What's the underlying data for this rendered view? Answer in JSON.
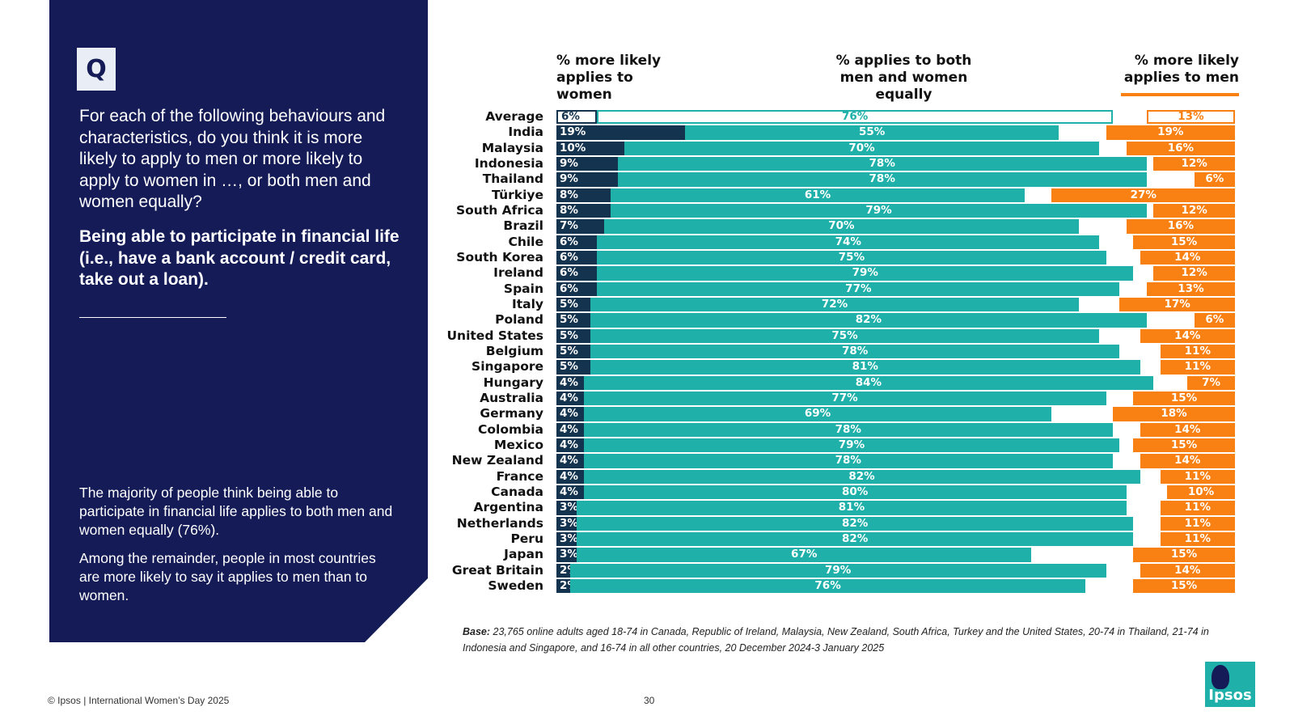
{
  "panel": {
    "badge": "Q",
    "question": "For each of the following behaviours and characteristics, do you think it is more likely to apply to men or more likely to apply to women in …, or both men and women equally?",
    "question_bold": "Being able to participate in financial life (i.e., have a bank account / credit card, take out a loan).",
    "summary_1": "The majority of people think being able to participate in financial life applies to both men and women equally (76%).",
    "summary_2": "Among the remainder, people in most countries are more likely to say it applies to men than to women."
  },
  "headers": {
    "women_line1": "% more likely",
    "women_line2": "applies to women",
    "both_line1": "% applies to both",
    "both_line2": "men and women equally",
    "men_line1": "% more likely",
    "men_line2": "applies to men"
  },
  "colors": {
    "navy": "#141b57",
    "women": "#14334f",
    "both": "#1fb0aa",
    "men": "#f98012"
  },
  "chart_data": {
    "type": "bar",
    "orientation": "horizontal",
    "stacked": true,
    "unit": "%",
    "categories": [
      "Average",
      "India",
      "Malaysia",
      "Indonesia",
      "Thailand",
      "Türkiye",
      "South Africa",
      "Brazil",
      "Chile",
      "South Korea",
      "Ireland",
      "Spain",
      "Italy",
      "Poland",
      "United States",
      "Belgium",
      "Singapore",
      "Hungary",
      "Australia",
      "Germany",
      "Colombia",
      "Mexico",
      "New Zealand",
      "France",
      "Canada",
      "Argentina",
      "Netherlands",
      "Peru",
      "Japan",
      "Great Britain",
      "Sweden"
    ],
    "series": [
      {
        "name": "% more likely applies to women",
        "values": [
          6,
          19,
          10,
          9,
          9,
          8,
          8,
          7,
          6,
          6,
          6,
          6,
          5,
          5,
          5,
          5,
          5,
          4,
          4,
          4,
          4,
          4,
          4,
          4,
          4,
          3,
          3,
          3,
          3,
          2,
          2
        ]
      },
      {
        "name": "% applies to both men and women equally",
        "values": [
          76,
          55,
          70,
          78,
          78,
          61,
          79,
          70,
          74,
          75,
          79,
          77,
          72,
          82,
          75,
          78,
          81,
          84,
          77,
          69,
          78,
          79,
          78,
          82,
          80,
          81,
          82,
          82,
          67,
          79,
          76
        ]
      },
      {
        "name": "% more likely applies to men",
        "values": [
          13,
          19,
          16,
          12,
          6,
          27,
          12,
          16,
          15,
          14,
          12,
          13,
          17,
          6,
          14,
          11,
          11,
          7,
          15,
          18,
          14,
          15,
          14,
          11,
          10,
          11,
          11,
          11,
          15,
          14,
          15
        ]
      }
    ],
    "highlight_category": "Average"
  },
  "base_label": "Base:",
  "base_text": "23,765 online adults aged 18-74 in Canada, Republic of Ireland, Malaysia, New Zealand, South Africa, Turkey and the United States, 20-74 in Thailand, 21-74 in Indonesia and Singapore, and 16-74 in all other countries, 20 December 2024-3 January 2025",
  "footer": {
    "left": "© Ipsos | International Women’s Day 2025",
    "page": "30"
  },
  "logo": {
    "word": "Ipsos"
  }
}
